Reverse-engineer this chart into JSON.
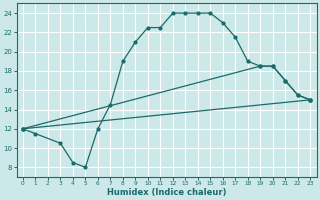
{
  "xlabel": "Humidex (Indice chaleur)",
  "bg_color": "#cce8e8",
  "grid_color": "#ffffff",
  "line_color": "#1a6b6b",
  "xlim": [
    -0.5,
    23.5
  ],
  "ylim": [
    7,
    25
  ],
  "yticks": [
    8,
    10,
    12,
    14,
    16,
    18,
    20,
    22,
    24
  ],
  "xticks": [
    0,
    1,
    2,
    3,
    4,
    5,
    6,
    7,
    8,
    9,
    10,
    11,
    12,
    13,
    14,
    15,
    16,
    17,
    18,
    19,
    20,
    21,
    22,
    23
  ],
  "curve1_x": [
    0,
    1,
    3,
    4,
    5,
    6,
    7,
    8,
    9,
    10,
    11,
    12,
    13,
    14,
    15,
    16,
    17,
    18,
    19,
    20,
    21,
    22,
    23
  ],
  "curve1_y": [
    12.0,
    11.5,
    10.5,
    8.5,
    8.0,
    12.0,
    14.5,
    19.0,
    21.0,
    22.5,
    22.5,
    24.0,
    24.0,
    24.0,
    24.0,
    23.0,
    21.5,
    19.0,
    18.5,
    18.5,
    17.0,
    15.5,
    15.0
  ],
  "line2_x": [
    0,
    19,
    20,
    21,
    22,
    23
  ],
  "line2_y": [
    12.0,
    18.5,
    18.5,
    17.0,
    15.5,
    15.0
  ],
  "line3_x": [
    0,
    23
  ],
  "line3_y": [
    12.0,
    15.0
  ]
}
